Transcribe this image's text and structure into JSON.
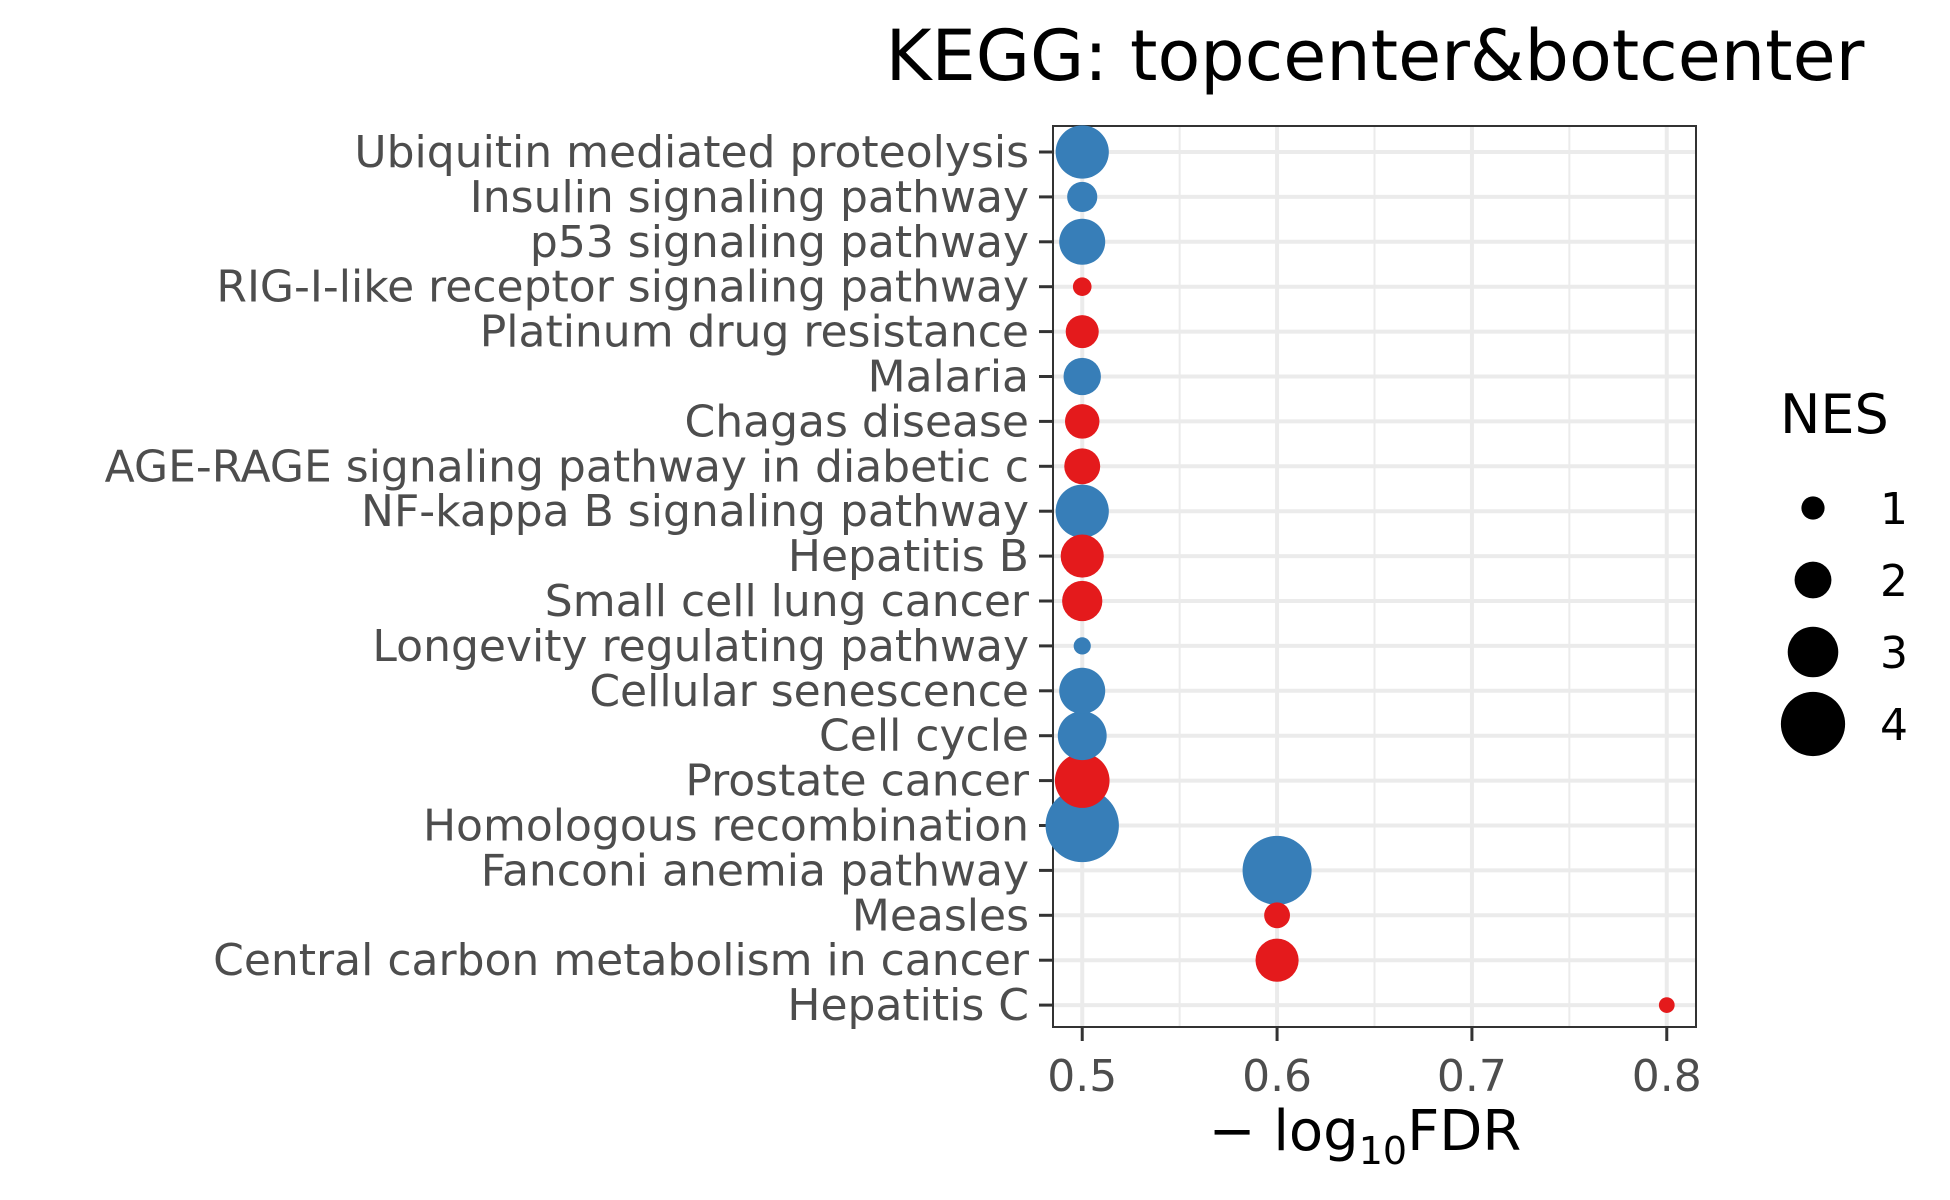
{
  "chart_data": {
    "type": "scatter",
    "title": "KEGG: topcenter&botcenter",
    "xlabel_prefix": "− log",
    "xlabel_sub": "10",
    "xlabel_suffix": "FDR",
    "ylabel": "",
    "xlim": [
      0.485,
      0.815
    ],
    "xticks": [
      0.5,
      0.6,
      0.7,
      0.8
    ],
    "xtick_labels": [
      "0.5",
      "0.6",
      "0.7",
      "0.8"
    ],
    "grid": true,
    "legend": {
      "title": "NES",
      "placement": "right",
      "sizes": [
        1,
        2,
        3,
        4
      ],
      "labels": [
        "1",
        "2",
        "3",
        "4"
      ]
    },
    "colors": {
      "red": "#e41a1c",
      "blue": "#377eb8"
    },
    "categories": [
      "Ubiquitin mediated proteolysis",
      "Insulin signaling pathway",
      "p53 signaling pathway",
      "RIG-I-like receptor signaling pathway",
      "Platinum drug resistance",
      "Malaria",
      "Chagas disease",
      "AGE-RAGE signaling pathway in diabetic c",
      "NF-kappa B signaling pathway",
      "Hepatitis B",
      "Small cell lung cancer",
      "Longevity regulating pathway",
      "Cellular senescence",
      "Cell cycle",
      "Prostate cancer",
      "Homologous recombination",
      "Fanconi anemia pathway",
      "Measles",
      "Central carbon metabolism in cancer",
      "Hepatitis C"
    ],
    "points": [
      {
        "x": 0.5,
        "nes": 3.0,
        "color": "blue"
      },
      {
        "x": 0.5,
        "nes": 1.4,
        "color": "blue"
      },
      {
        "x": 0.5,
        "nes": 2.5,
        "color": "blue"
      },
      {
        "x": 0.5,
        "nes": 0.6,
        "color": "red"
      },
      {
        "x": 0.5,
        "nes": 1.6,
        "color": "red"
      },
      {
        "x": 0.5,
        "nes": 1.9,
        "color": "blue"
      },
      {
        "x": 0.5,
        "nes": 1.7,
        "color": "red"
      },
      {
        "x": 0.5,
        "nes": 1.8,
        "color": "red"
      },
      {
        "x": 0.5,
        "nes": 3.0,
        "color": "blue"
      },
      {
        "x": 0.5,
        "nes": 2.3,
        "color": "red"
      },
      {
        "x": 0.5,
        "nes": 2.1,
        "color": "red"
      },
      {
        "x": 0.5,
        "nes": 0.5,
        "color": "blue"
      },
      {
        "x": 0.5,
        "nes": 2.5,
        "color": "blue"
      },
      {
        "x": 0.5,
        "nes": 2.7,
        "color": "blue"
      },
      {
        "x": 0.5,
        "nes": 3.1,
        "color": "red"
      },
      {
        "x": 0.5,
        "nes": 4.4,
        "color": "blue"
      },
      {
        "x": 0.6,
        "nes": 4.1,
        "color": "blue"
      },
      {
        "x": 0.6,
        "nes": 1.1,
        "color": "red"
      },
      {
        "x": 0.6,
        "nes": 2.3,
        "color": "red"
      },
      {
        "x": 0.8,
        "nes": 0.4,
        "color": "red"
      }
    ]
  }
}
